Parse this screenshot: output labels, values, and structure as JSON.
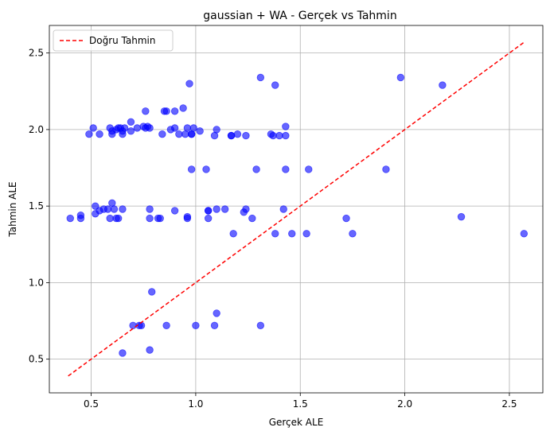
{
  "chart_data": {
    "type": "scatter",
    "title": "gaussian + WA - Gerçek vs Tahmin",
    "xlabel": "Gerçek ALE",
    "ylabel": "Tahmin ALE",
    "xlim": [
      0.3,
      2.66
    ],
    "ylim": [
      0.28,
      2.68
    ],
    "xticks": [
      0.5,
      1.0,
      1.5,
      2.0,
      2.5
    ],
    "xtick_labels": [
      "0.5",
      "1.0",
      "1.5",
      "2.0",
      "2.5"
    ],
    "yticks": [
      0.5,
      1.0,
      1.5,
      2.0,
      2.5
    ],
    "ytick_labels": [
      "0.5",
      "1.0",
      "1.5",
      "2.0",
      "2.5"
    ],
    "grid": true,
    "legend_position": "top-left",
    "series": [
      {
        "kind": "scatter",
        "color": "#0000ff",
        "alpha": 0.6,
        "points": [
          [
            0.4,
            1.42
          ],
          [
            0.45,
            1.42
          ],
          [
            0.45,
            1.44
          ],
          [
            0.49,
            1.97
          ],
          [
            0.51,
            2.01
          ],
          [
            0.52,
            1.45
          ],
          [
            0.52,
            1.5
          ],
          [
            0.54,
            1.97
          ],
          [
            0.54,
            1.47
          ],
          [
            0.56,
            1.48
          ],
          [
            0.58,
            1.48
          ],
          [
            0.59,
            2.01
          ],
          [
            0.59,
            1.42
          ],
          [
            0.6,
            1.52
          ],
          [
            0.6,
            1.97
          ],
          [
            0.6,
            1.99
          ],
          [
            0.61,
            1.48
          ],
          [
            0.62,
            1.42
          ],
          [
            0.62,
            2.0
          ],
          [
            0.63,
            1.42
          ],
          [
            0.63,
            2.01
          ],
          [
            0.64,
            2.01
          ],
          [
            0.65,
            1.48
          ],
          [
            0.65,
            1.97
          ],
          [
            0.65,
            1.99
          ],
          [
            0.66,
            2.01
          ],
          [
            0.69,
            2.05
          ],
          [
            0.69,
            1.99
          ],
          [
            0.72,
            2.01
          ],
          [
            0.75,
            2.02
          ],
          [
            0.76,
            2.12
          ],
          [
            0.76,
            2.01
          ],
          [
            0.77,
            2.02
          ],
          [
            0.78,
            1.48
          ],
          [
            0.78,
            1.42
          ],
          [
            0.78,
            2.01
          ],
          [
            0.82,
            1.42
          ],
          [
            0.83,
            1.42
          ],
          [
            0.84,
            1.97
          ],
          [
            0.85,
            2.12
          ],
          [
            0.86,
            2.12
          ],
          [
            0.88,
            2.0
          ],
          [
            0.9,
            2.01
          ],
          [
            0.9,
            1.47
          ],
          [
            0.9,
            2.12
          ],
          [
            0.92,
            1.97
          ],
          [
            0.94,
            2.14
          ],
          [
            0.95,
            1.97
          ],
          [
            0.96,
            2.01
          ],
          [
            0.96,
            1.42
          ],
          [
            0.96,
            1.43
          ],
          [
            0.97,
            2.3
          ],
          [
            0.98,
            1.97
          ],
          [
            0.98,
            1.97
          ],
          [
            0.98,
            1.74
          ],
          [
            0.99,
            2.01
          ],
          [
            1.02,
            1.99
          ],
          [
            1.05,
            1.74
          ],
          [
            1.06,
            1.47
          ],
          [
            1.06,
            1.42
          ],
          [
            1.06,
            1.47
          ],
          [
            1.09,
            1.96
          ],
          [
            1.1,
            2.0
          ],
          [
            1.1,
            1.48
          ],
          [
            1.14,
            1.48
          ],
          [
            1.17,
            1.96
          ],
          [
            1.17,
            1.96
          ],
          [
            1.18,
            1.32
          ],
          [
            1.2,
            1.97
          ],
          [
            1.23,
            1.46
          ],
          [
            1.24,
            1.48
          ],
          [
            1.24,
            1.96
          ],
          [
            1.27,
            1.42
          ],
          [
            1.29,
            1.74
          ],
          [
            1.31,
            2.34
          ],
          [
            1.36,
            1.97
          ],
          [
            1.37,
            1.96
          ],
          [
            1.38,
            2.29
          ],
          [
            1.38,
            1.32
          ],
          [
            1.4,
            1.96
          ],
          [
            1.42,
            1.48
          ],
          [
            1.43,
            1.74
          ],
          [
            1.43,
            1.96
          ],
          [
            1.43,
            2.02
          ],
          [
            1.46,
            1.32
          ],
          [
            1.53,
            1.32
          ],
          [
            1.54,
            1.74
          ],
          [
            1.72,
            1.42
          ],
          [
            1.75,
            1.32
          ],
          [
            1.91,
            1.74
          ],
          [
            1.98,
            2.34
          ],
          [
            2.18,
            2.29
          ],
          [
            2.27,
            1.43
          ],
          [
            2.57,
            1.32
          ],
          [
            0.65,
            0.54
          ],
          [
            0.7,
            0.72
          ],
          [
            0.73,
            0.72
          ],
          [
            0.74,
            0.72
          ],
          [
            0.78,
            0.56
          ],
          [
            0.79,
            0.94
          ],
          [
            0.86,
            0.72
          ],
          [
            1.0,
            0.72
          ],
          [
            1.09,
            0.72
          ],
          [
            1.1,
            0.8
          ],
          [
            1.31,
            0.72
          ]
        ]
      },
      {
        "kind": "line",
        "name": "Doğru Tahmin",
        "color": "#ff0000",
        "dashed": true,
        "points": [
          [
            0.39,
            0.39
          ],
          [
            2.57,
            2.57
          ]
        ]
      }
    ]
  }
}
